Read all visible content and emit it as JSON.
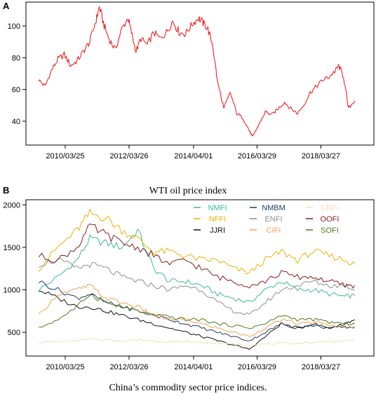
{
  "panels": {
    "a": {
      "letter": "A",
      "caption": "WTI oil price index"
    },
    "b": {
      "letter": "B",
      "caption": "China’s commodity sector price indices."
    }
  },
  "chart_data": [
    {
      "type": "line",
      "title": "",
      "xlabel": "",
      "ylabel": "",
      "x_ticks": [
        "2010/03/25",
        "2012/03/26",
        "2014/04/01",
        "2016/03/29",
        "2018/03/27"
      ],
      "x_tick_years": [
        2010.23,
        2012.23,
        2014.25,
        2016.24,
        2018.24
      ],
      "xlim": [
        2009.0,
        2019.9
      ],
      "y_ticks": [
        40,
        60,
        80,
        100
      ],
      "ylim": [
        25,
        115
      ],
      "grid": false,
      "legend": "none",
      "series": [
        {
          "color": "#ee1111",
          "x": [
            2009.4,
            2009.6,
            2009.8,
            2010.0,
            2010.2,
            2010.4,
            2010.6,
            2010.8,
            2011.0,
            2011.2,
            2011.3,
            2011.45,
            2011.6,
            2011.8,
            2012.0,
            2012.2,
            2012.3,
            2012.45,
            2012.6,
            2012.8,
            2013.0,
            2013.2,
            2013.4,
            2013.6,
            2013.8,
            2014.0,
            2014.2,
            2014.4,
            2014.55,
            2014.7,
            2014.85,
            2015.0,
            2015.2,
            2015.4,
            2015.6,
            2015.8,
            2016.0,
            2016.1,
            2016.3,
            2016.5,
            2016.7,
            2016.9,
            2017.1,
            2017.3,
            2017.5,
            2017.7,
            2017.9,
            2018.1,
            2018.3,
            2018.5,
            2018.7,
            2018.8,
            2018.95,
            2019.1,
            2019.3
          ],
          "y": [
            66,
            62,
            72,
            79,
            82,
            75,
            78,
            84,
            90,
            104,
            112,
            100,
            92,
            85,
            98,
            105,
            96,
            84,
            92,
            88,
            96,
            92,
            96,
            103,
            96,
            95,
            101,
            105,
            102,
            98,
            88,
            65,
            48,
            58,
            45,
            42,
            34,
            30,
            38,
            46,
            44,
            48,
            52,
            48,
            45,
            50,
            58,
            62,
            66,
            68,
            72,
            75,
            68,
            48,
            53
          ]
        }
      ]
    },
    {
      "type": "line",
      "title": "",
      "xlabel": "",
      "ylabel": "",
      "x_ticks": [
        "2010/03/25",
        "2012/03/26",
        "2014/04/01",
        "2016/03/29",
        "2018/03/27"
      ],
      "x_tick_years": [
        2010.23,
        2012.23,
        2014.25,
        2016.24,
        2018.24
      ],
      "xlim": [
        2009.0,
        2019.9
      ],
      "y_ticks": [
        500,
        1000,
        1500,
        2000
      ],
      "ylim": [
        220,
        2060
      ],
      "grid": false,
      "legend": "top-right",
      "x": [
        2009.4,
        2010.0,
        2010.6,
        2011.0,
        2011.5,
        2012.0,
        2012.5,
        2013.0,
        2013.5,
        2014.0,
        2014.5,
        2015.0,
        2015.5,
        2016.0,
        2016.5,
        2017.0,
        2017.5,
        2018.0,
        2018.5,
        2019.0,
        2019.3
      ],
      "series": [
        {
          "name": "NMFI",
          "color": "#3cb99a",
          "values": [
            1000,
            1150,
            1350,
            1600,
            1550,
            1500,
            1700,
            1250,
            1100,
            1100,
            1050,
            950,
            900,
            850,
            1000,
            1100,
            1000,
            1000,
            950,
            920,
            930
          ]
        },
        {
          "name": "NFFI",
          "color": "#f0b000",
          "values": [
            1250,
            1500,
            1700,
            1900,
            1850,
            1700,
            1600,
            1450,
            1450,
            1400,
            1350,
            1350,
            1250,
            1200,
            1350,
            1450,
            1350,
            1450,
            1400,
            1350,
            1300
          ]
        },
        {
          "name": "JJRI",
          "color": "#111111",
          "values": [
            1000,
            900,
            800,
            800,
            750,
            700,
            650,
            600,
            550,
            500,
            450,
            400,
            350,
            300,
            450,
            600,
            550,
            600,
            550,
            600,
            650
          ]
        },
        {
          "name": "NMBM",
          "color": "#1f3b5c",
          "values": [
            1100,
            1000,
            900,
            950,
            850,
            800,
            750,
            700,
            650,
            600,
            550,
            500,
            450,
            400,
            500,
            600,
            550,
            580,
            550,
            560,
            560
          ]
        },
        {
          "name": "ENFI",
          "color": "#8f8f8f",
          "values": [
            1300,
            1350,
            1250,
            1300,
            1250,
            1150,
            1100,
            1050,
            1000,
            1050,
            1000,
            850,
            750,
            700,
            850,
            1000,
            1050,
            1100,
            1050,
            1050,
            1000
          ]
        },
        {
          "name": "CIFI",
          "color": "#f6a052",
          "values": [
            700,
            950,
            1000,
            1050,
            900,
            850,
            800,
            700,
            650,
            650,
            600,
            550,
            500,
            450,
            550,
            650,
            600,
            620,
            580,
            560,
            560
          ]
        },
        {
          "name": "CRFI",
          "color": "#f6dfb4",
          "values": [
            380,
            390,
            400,
            420,
            410,
            400,
            410,
            400,
            390,
            390,
            380,
            370,
            360,
            350,
            360,
            370,
            370,
            380,
            390,
            400,
            410
          ]
        },
        {
          "name": "OOFI",
          "color": "#8b1a1a",
          "values": [
            1400,
            1350,
            1500,
            1750,
            1650,
            1550,
            1500,
            1400,
            1300,
            1350,
            1250,
            1150,
            1100,
            1050,
            1100,
            1200,
            1150,
            1150,
            1100,
            1050,
            1050
          ]
        },
        {
          "name": "SOFI",
          "color": "#4d7a1a",
          "values": [
            550,
            650,
            800,
            950,
            850,
            800,
            750,
            700,
            680,
            650,
            650,
            600,
            580,
            550,
            600,
            700,
            650,
            650,
            620,
            600,
            600
          ]
        }
      ]
    }
  ]
}
